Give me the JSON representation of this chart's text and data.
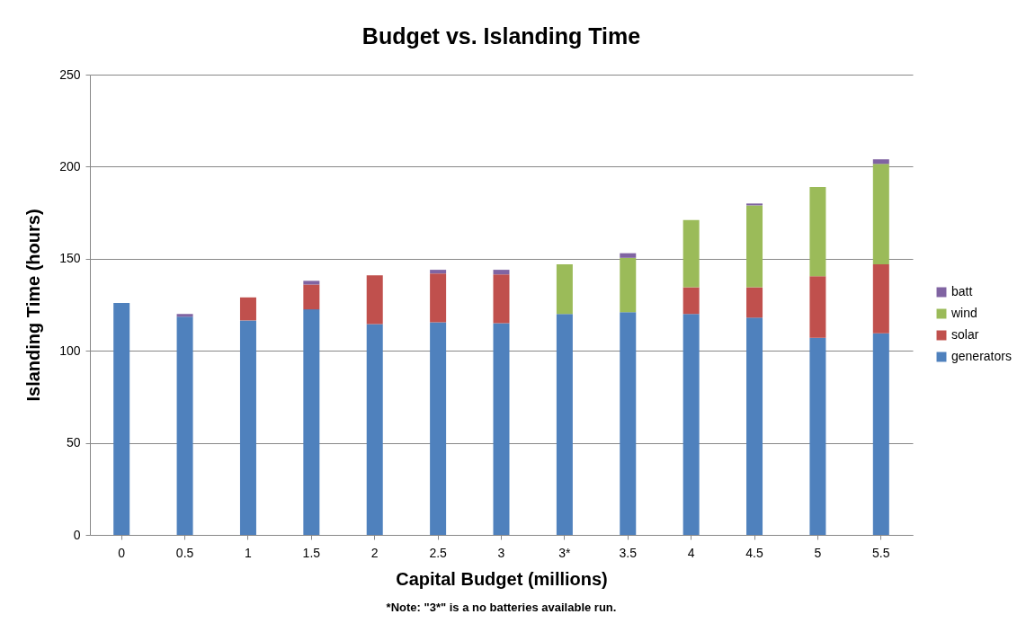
{
  "chart_data": {
    "type": "bar",
    "title": "Budget vs. Islanding Time",
    "xlabel": "Capital Budget (millions)",
    "ylabel": "Islanding Time (hours)",
    "annotations": [
      "*Note:  \"3*\" is a no batteries available run."
    ],
    "categories": [
      "0",
      "0.5",
      "1",
      "1.5",
      "2",
      "2.5",
      "3",
      "3*",
      "3.5",
      "4",
      "4.5",
      "5",
      "5.5"
    ],
    "stacked": true,
    "ylim": [
      0,
      250
    ],
    "yticks": [
      0,
      50,
      100,
      150,
      200,
      250
    ],
    "grid": "y",
    "legend": "right",
    "series": [
      {
        "name": "generators",
        "color": "#4f81bd",
        "values": [
          126,
          118.5,
          116.5,
          122.5,
          114.5,
          115.5,
          115,
          120,
          121,
          120,
          118,
          107,
          109.5
        ]
      },
      {
        "name": "solar",
        "color": "#c0504d",
        "values": [
          0,
          0,
          12.5,
          13.5,
          26.5,
          26.5,
          26.5,
          0,
          0,
          14.5,
          16.5,
          33.5,
          37.5
        ]
      },
      {
        "name": "wind",
        "color": "#9bbb59",
        "values": [
          0,
          0,
          0,
          0,
          0,
          0,
          0,
          27,
          29.5,
          36.5,
          44.5,
          48.5,
          54.5
        ]
      },
      {
        "name": "batt",
        "color": "#8064a2",
        "values": [
          0,
          1.5,
          0,
          2,
          0,
          2,
          2.5,
          0,
          2.5,
          0,
          1,
          0,
          2.5
        ]
      }
    ]
  }
}
